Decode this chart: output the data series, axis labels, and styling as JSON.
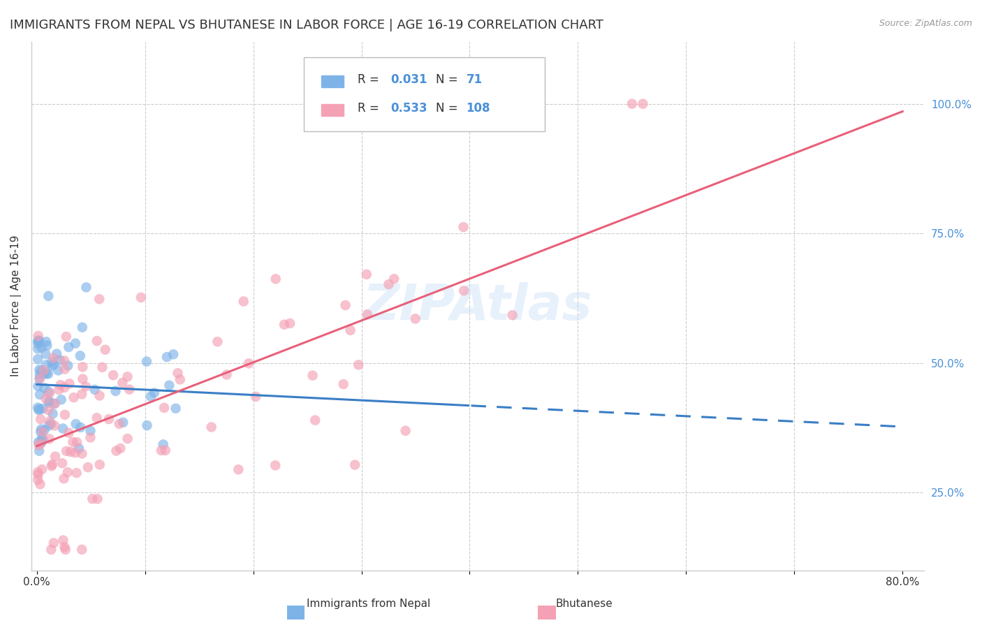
{
  "title": "IMMIGRANTS FROM NEPAL VS BHUTANESE IN LABOR FORCE | AGE 16-19 CORRELATION CHART",
  "source": "Source: ZipAtlas.com",
  "ylabel": "In Labor Force | Age 16-19",
  "xlim": [
    -0.005,
    0.82
  ],
  "ylim": [
    0.1,
    1.12
  ],
  "xtick_positions": [
    0.0,
    0.1,
    0.2,
    0.3,
    0.4,
    0.5,
    0.6,
    0.7,
    0.8
  ],
  "xticklabels": [
    "0.0%",
    "",
    "",
    "",
    "",
    "",
    "",
    "",
    "80.0%"
  ],
  "yticks_right": [
    0.25,
    0.5,
    0.75,
    1.0
  ],
  "ytick_labels_right": [
    "25.0%",
    "50.0%",
    "75.0%",
    "100.0%"
  ],
  "nepal_R": 0.031,
  "nepal_N": 71,
  "bhutan_R": 0.533,
  "bhutan_N": 108,
  "nepal_color": "#7EB3E8",
  "bhutan_color": "#F4A0B5",
  "nepal_line_color": "#3A7EC6",
  "bhutan_line_color": "#E8607A",
  "watermark": "ZIPAtlas",
  "background_color": "#FFFFFF",
  "grid_color": "#CCCCCC",
  "title_fontsize": 13,
  "label_fontsize": 11,
  "tick_fontsize": 11,
  "legend_fontsize": 12,
  "blue_text_color": "#4A90D9"
}
